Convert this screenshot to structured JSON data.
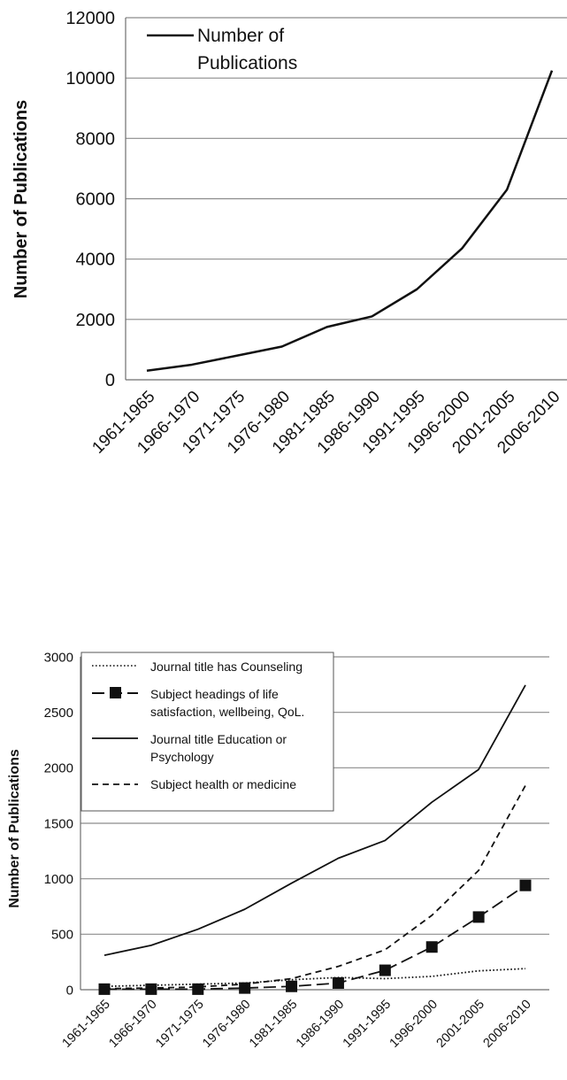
{
  "chart_data": [
    {
      "type": "line",
      "categories": [
        "1961-1965",
        "1966-1970",
        "1971-1975",
        "1976-1980",
        "1981-1985",
        "1986-1990",
        "1991-1995",
        "1996-2000",
        "2001-2005",
        "2006-2010"
      ],
      "series": [
        {
          "name": "Number of Publications",
          "values": [
            300,
            500,
            800,
            1100,
            1750,
            2100,
            3000,
            4350,
            6300,
            10250
          ],
          "style": "solid",
          "color": "#111111"
        }
      ],
      "title": "",
      "xlabel": "",
      "ylabel": "Number of Publications",
      "ylim": [
        0,
        12000
      ],
      "yticks": [
        0,
        2000,
        4000,
        6000,
        8000,
        10000,
        12000
      ],
      "grid": "horizontal",
      "legend": "top-left"
    },
    {
      "type": "line",
      "categories": [
        "1961-1965",
        "1966-1970",
        "1971-1975",
        "1976-1980",
        "1981-1985",
        "1986-1990",
        "1991-1995",
        "1996-2000",
        "2001-2005",
        "2006-2010"
      ],
      "series": [
        {
          "name": "Journal title has Counseling",
          "values": [
            30,
            40,
            50,
            60,
            90,
            110,
            100,
            120,
            170,
            190
          ],
          "style": "dotted",
          "color": "#111111"
        },
        {
          "name": "Subject headings of life satisfaction, wellbeing, QoL.",
          "values": [
            5,
            5,
            5,
            15,
            30,
            60,
            175,
            385,
            655,
            940
          ],
          "style": "long-dash-square",
          "color": "#111111"
        },
        {
          "name": "Journal title Education or Psychology",
          "values": [
            310,
            400,
            545,
            725,
            960,
            1185,
            1345,
            1690,
            1985,
            2745
          ],
          "style": "solid",
          "color": "#111111"
        },
        {
          "name": "Subject health or medicine",
          "values": [
            10,
            15,
            25,
            50,
            100,
            210,
            360,
            670,
            1075,
            1840
          ],
          "style": "dashed",
          "color": "#111111"
        }
      ],
      "title": "",
      "xlabel": "",
      "ylabel": "Number of Publications",
      "ylim": [
        0,
        3000
      ],
      "yticks": [
        0,
        500,
        1000,
        1500,
        2000,
        2500,
        3000
      ],
      "grid": "horizontal",
      "legend": "top-left"
    }
  ]
}
